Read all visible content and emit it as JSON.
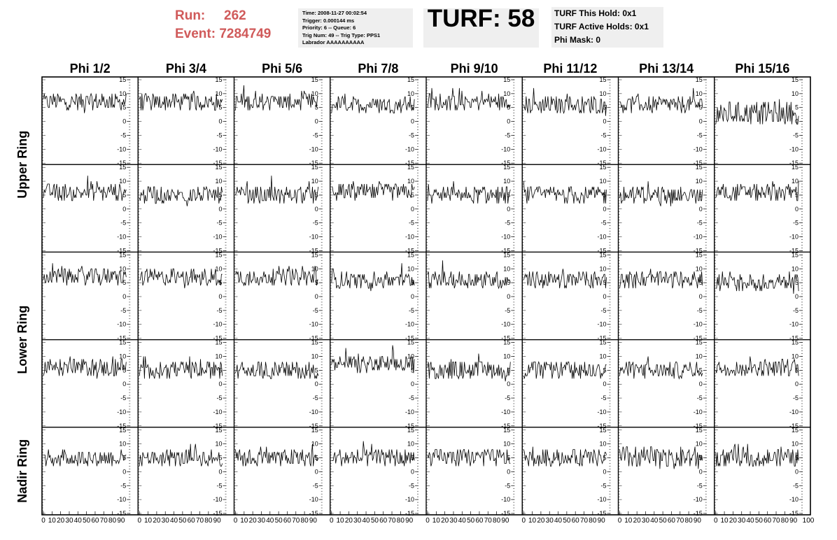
{
  "header": {
    "run_label": "Run:",
    "run_value": "262",
    "event_label": "Event:",
    "event_value": "7284749",
    "info_lines": [
      "Time: 2008-11-27 00:02:54",
      "Trigger: 0.000144 ms",
      "Priority: 6 -- Queue: 6",
      "Trig Num: 49 -- Trig Type: PPS1",
      "Labrador AAAAAAAAAA"
    ],
    "turf_text": "TURF: 58",
    "hold_lines": [
      "TURF This Hold: 0x1",
      "TURF Active Holds: 0x1",
      "Phi Mask: 0"
    ]
  },
  "colors": {
    "header_red": "#d05a5a",
    "panel_bg": "#efefef",
    "trace": "#000000"
  },
  "chart_data": {
    "type": "line",
    "columns": [
      "Phi 1/2",
      "Phi 3/4",
      "Phi 5/6",
      "Phi 7/8",
      "Phi 9/10",
      "Phi 11/12",
      "Phi 13/14",
      "Phi 15/16"
    ],
    "rows": [
      "Upper Ring",
      "",
      "Lower Ring",
      "",
      "Nadir Ring"
    ],
    "row_label_spans": [
      {
        "label": "Upper Ring",
        "rows": [
          0,
          1
        ]
      },
      {
        "label": "Lower Ring",
        "rows": [
          2,
          3
        ]
      },
      {
        "label": "Nadir Ring",
        "rows": [
          4,
          4
        ]
      }
    ],
    "xlim": [
      0,
      100
    ],
    "ylim": [
      -15,
      15
    ],
    "x_ticks": [
      0,
      10,
      20,
      30,
      40,
      50,
      60,
      70,
      80,
      90
    ],
    "y_ticks": [
      -15,
      -10,
      -5,
      0,
      5,
      10,
      15
    ],
    "last_x_tick": "100",
    "samples_per_trace": 100,
    "traces_note_baseline": [
      [
        7,
        7,
        7,
        6,
        7,
        6,
        6,
        3
      ],
      [
        6,
        5,
        5,
        6,
        5,
        5,
        5,
        6
      ],
      [
        7,
        7,
        7,
        6,
        6,
        6,
        6,
        5
      ],
      [
        6,
        5,
        5,
        7,
        5,
        5,
        5,
        6
      ],
      [
        5,
        5,
        5,
        5,
        5,
        5,
        5,
        5
      ]
    ],
    "trace_spread": [
      [
        3,
        3,
        3,
        3,
        3,
        3,
        3,
        4
      ],
      [
        3,
        3,
        3,
        3,
        3,
        3,
        3,
        3
      ],
      [
        3,
        3,
        3,
        3,
        3,
        3,
        3,
        3
      ],
      [
        3,
        3,
        3,
        3,
        3,
        3,
        3,
        3
      ],
      [
        3,
        3,
        3,
        3,
        3,
        3,
        4,
        3
      ]
    ]
  }
}
